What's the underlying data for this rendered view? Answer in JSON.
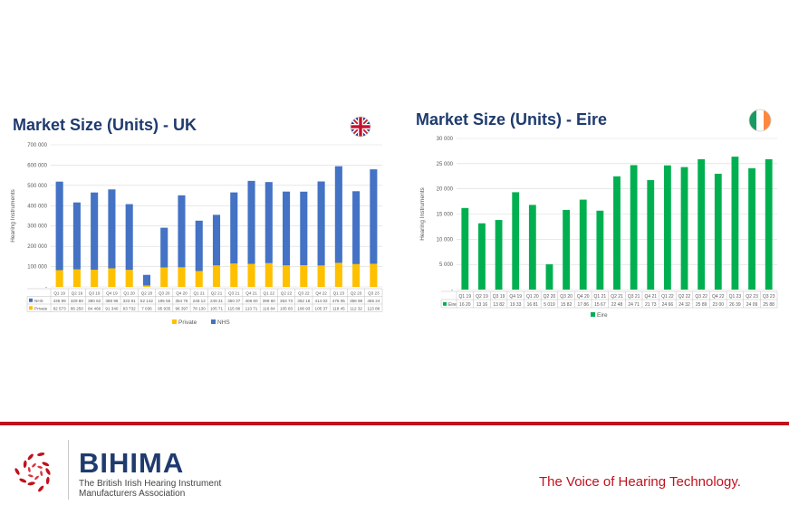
{
  "uk_panel": {
    "title": "Market Size (Units) - UK",
    "flag_icon": "uk-flag-icon"
  },
  "ie_panel": {
    "title": "Market Size (Units) - Eire",
    "flag_icon": "ireland-flag-icon"
  },
  "chart_data": [
    {
      "type": "bar",
      "stacked": true,
      "title": "Market Size (Units) - UK",
      "xlabel": "",
      "ylabel": "Hearing Instruments",
      "ylim": [
        0,
        700000
      ],
      "yticks": [
        0,
        100000,
        200000,
        300000,
        400000,
        500000,
        600000,
        700000
      ],
      "ytick_labels": [
        "-",
        "100 000",
        "200 000",
        "300 000",
        "400 000",
        "500 000",
        "600 000",
        "700 000"
      ],
      "categories": [
        "Q1 19",
        "Q2 19",
        "Q3 19",
        "Q4 19",
        "Q1 20",
        "Q2 20",
        "Q3 20",
        "Q4 20",
        "Q1 21",
        "Q2 21",
        "Q3 21",
        "Q4 21",
        "Q1 22",
        "Q2 22",
        "Q3 22",
        "Q4 22",
        "Q1 23",
        "Q2 23",
        "Q3 23"
      ],
      "series": [
        {
          "name": "Private",
          "color": "#ffc000",
          "values": [
            82573,
            86250,
            84466,
            91340,
            83732,
            7036,
            95935,
            96397,
            78130,
            105710,
            115080,
            113710,
            116840,
            105830,
            106930,
            105370,
            118450,
            112320,
            113880
          ],
          "table_values": [
            "82 573",
            "86 250",
            "84 466",
            "91 340",
            "83 732",
            "7 036",
            "95 935",
            "96 397",
            "78 130",
            "105 71",
            "115 08",
            "113 71",
            "116 84",
            "105 83",
            "106 93",
            "105 37",
            "118 45",
            "112 32",
            "113 88"
          ]
        },
        {
          "name": "NHS",
          "color": "#4472c4",
          "values": [
            435990,
            329800,
            380620,
            388960,
            323910,
            52142,
            195550,
            354760,
            248120,
            249310,
            350370,
            408600,
            399600,
            363730,
            362180,
            414020,
            476050,
            358980,
            465240
          ],
          "table_values": [
            "435 99",
            "329 80",
            "380 62",
            "388 96",
            "323 91",
            "52 142",
            "195 55",
            "354 76",
            "248 12",
            "249 31",
            "350 37",
            "408 60",
            "399 60",
            "363 73",
            "362 18",
            "414 02",
            "476 05",
            "358 98",
            "465 24"
          ]
        }
      ],
      "table_row_labels": [
        "NHS",
        "Private"
      ],
      "legend": [
        "Private",
        "NHS"
      ],
      "legend_position": "bottom",
      "grid": true
    },
    {
      "type": "bar",
      "title": "Market Size (Units) - Eire",
      "xlabel": "",
      "ylabel": "Hearing Instruments",
      "ylim": [
        0,
        30000
      ],
      "yticks": [
        0,
        5000,
        10000,
        15000,
        20000,
        25000,
        30000
      ],
      "ytick_labels": [
        "-",
        "5 000",
        "10 000",
        "15 000",
        "20 000",
        "25 000",
        "30 000"
      ],
      "categories": [
        "Q1 19",
        "Q2 19",
        "Q3 19",
        "Q4 19",
        "Q1 20",
        "Q2 20",
        "Q3 20",
        "Q4 20",
        "Q1 21",
        "Q2 21",
        "Q3 21",
        "Q4 21",
        "Q1 22",
        "Q2 22",
        "Q3 22",
        "Q4 22",
        "Q1 23",
        "Q2 23",
        "Q3 23"
      ],
      "series": [
        {
          "name": "Eire",
          "color": "#00b050",
          "values": [
            16200,
            13160,
            13820,
            19330,
            16810,
            5019,
            15820,
            17860,
            15670,
            22480,
            24710,
            21730,
            24660,
            24320,
            25890,
            23000,
            26390,
            24090,
            25880
          ],
          "table_values": [
            "16 20",
            "13 16",
            "13 82",
            "19 33",
            "16 81",
            "5 019",
            "15 82",
            "17 86",
            "15 67",
            "22 48",
            "24 71",
            "21 73",
            "24 66",
            "24 32",
            "25 89",
            "23 00",
            "26 39",
            "24 09",
            "25 88"
          ]
        }
      ],
      "table_row_labels": [
        "Eire"
      ],
      "legend": [
        "Eire"
      ],
      "legend_position": "bottom",
      "grid": true
    }
  ],
  "footer": {
    "brand": "BIHIMA",
    "brand_sub_line1": "The British Irish Hearing Instrument",
    "brand_sub_line2": "Manufacturers Association",
    "tagline": "The Voice of Hearing Technology.",
    "logo_icon": "bihima-logo-icon",
    "accent_color": "#c0121e"
  }
}
